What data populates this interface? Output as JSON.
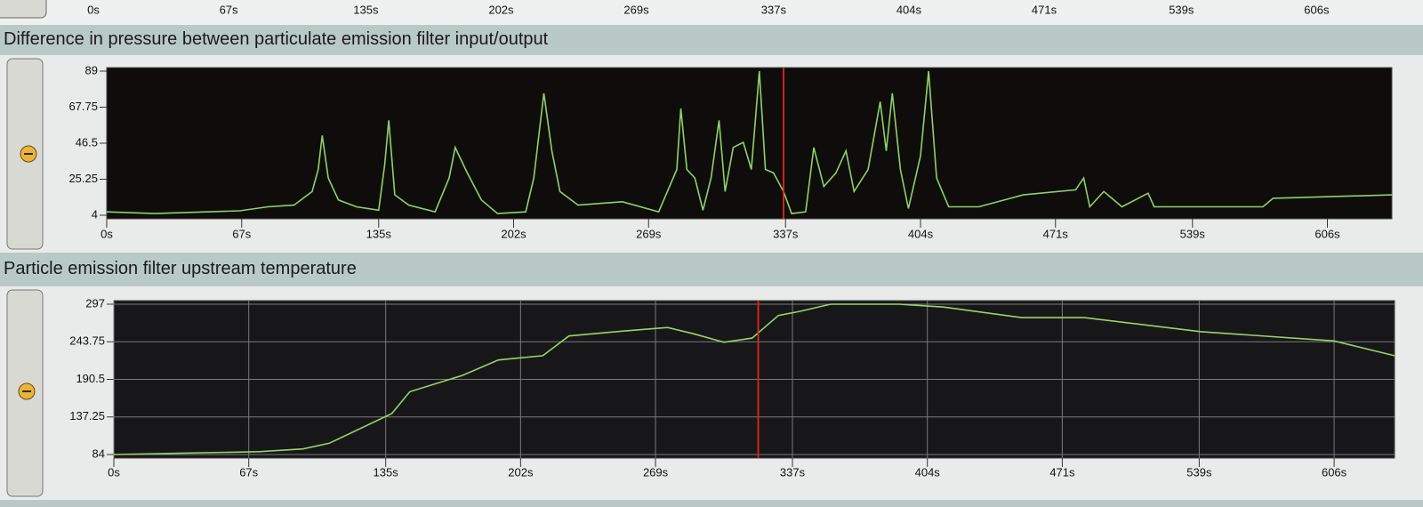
{
  "chart_data": [
    {
      "type": "line",
      "xlim": [
        0,
        638
      ],
      "xticks": [
        {
          "value": 0,
          "label": "0s"
        },
        {
          "value": 67,
          "label": "67s"
        },
        {
          "value": 135,
          "label": "135s"
        },
        {
          "value": 202,
          "label": "202s"
        },
        {
          "value": 269,
          "label": "269s"
        },
        {
          "value": 337,
          "label": "337s"
        },
        {
          "value": 404,
          "label": "404s"
        },
        {
          "value": 471,
          "label": "471s"
        },
        {
          "value": 539,
          "label": "539s"
        },
        {
          "value": 606,
          "label": "606s"
        }
      ],
      "series": []
    },
    {
      "type": "line",
      "title": "Difference in pressure between particulate emission filter input/output",
      "xlim": [
        0,
        638
      ],
      "ylim": [
        4,
        89
      ],
      "yticks": [
        4,
        25.25,
        46.5,
        67.75,
        89
      ],
      "xticks": [
        {
          "value": 0,
          "label": "0s"
        },
        {
          "value": 67,
          "label": "67s"
        },
        {
          "value": 135,
          "label": "135s"
        },
        {
          "value": 202,
          "label": "202s"
        },
        {
          "value": 269,
          "label": "269s"
        },
        {
          "value": 337,
          "label": "337s"
        },
        {
          "value": 404,
          "label": "404s"
        },
        {
          "value": 471,
          "label": "471s"
        },
        {
          "value": 539,
          "label": "539s"
        },
        {
          "value": 606,
          "label": "606s"
        }
      ],
      "grid": false,
      "background": "#0f0d0b",
      "cursor": 336,
      "x": [
        0,
        24,
        66,
        80,
        93,
        102,
        105,
        107,
        110,
        115,
        124,
        135,
        138,
        140,
        143,
        150,
        163,
        170,
        173,
        179,
        186,
        194,
        208,
        212,
        217,
        221,
        225,
        234,
        256,
        265,
        274,
        283,
        285,
        288,
        292,
        296,
        300,
        304,
        307,
        311,
        316,
        320,
        324,
        327,
        331,
        336,
        340,
        347,
        351,
        356,
        362,
        367,
        371,
        378,
        384,
        387,
        390,
        394,
        398,
        404,
        408,
        412,
        418,
        433,
        455,
        481,
        485,
        488,
        495,
        504,
        517,
        520,
        574,
        579,
        638
      ],
      "series": [
        {
          "color": "#8fd16a",
          "values": [
            6,
            5,
            6.6,
            9,
            10,
            18,
            31,
            51,
            26,
            13,
            9,
            7,
            34,
            60,
            16,
            10,
            6,
            26,
            44,
            29,
            13,
            5,
            6,
            26,
            76,
            42,
            18,
            10,
            12,
            9,
            6,
            31,
            67,
            31,
            26,
            7,
            26,
            60,
            18,
            44,
            47,
            31,
            89,
            31,
            29,
            18,
            5,
            6,
            44,
            21,
            29,
            42,
            18,
            31,
            71,
            42,
            76,
            31,
            8,
            39,
            89,
            26,
            9,
            9,
            16,
            19,
            26,
            9,
            18,
            9,
            17,
            9,
            9,
            14,
            16
          ]
        }
      ]
    },
    {
      "type": "line",
      "title": "Particle emission filter upstream temperature",
      "xlim": [
        0,
        636
      ],
      "ylim": [
        84,
        297
      ],
      "yticks": [
        84,
        137.25,
        190.5,
        243.75,
        297
      ],
      "xticks": [
        {
          "value": 0,
          "label": "0s"
        },
        {
          "value": 67,
          "label": "67s"
        },
        {
          "value": 135,
          "label": "135s"
        },
        {
          "value": 202,
          "label": "202s"
        },
        {
          "value": 269,
          "label": "269s"
        },
        {
          "value": 337,
          "label": "337s"
        },
        {
          "value": 404,
          "label": "404s"
        },
        {
          "value": 471,
          "label": "471s"
        },
        {
          "value": 539,
          "label": "539s"
        },
        {
          "value": 606,
          "label": "606s"
        }
      ],
      "grid": true,
      "background": "#17171a",
      "cursor": 320,
      "x": [
        0,
        72,
        94,
        107,
        138,
        147,
        173,
        191,
        213,
        226,
        253,
        275,
        288,
        303,
        317,
        330,
        341,
        356,
        390,
        412,
        451,
        482,
        540,
        606,
        636
      ],
      "series": [
        {
          "color": "#9ad36a",
          "values": [
            84,
            88,
            92,
            100,
            142,
            173,
            196,
            218,
            224,
            252,
            259,
            264,
            255,
            243,
            249,
            281,
            287,
            297,
            297,
            293,
            278,
            278,
            258,
            245,
            224
          ]
        }
      ]
    }
  ]
}
